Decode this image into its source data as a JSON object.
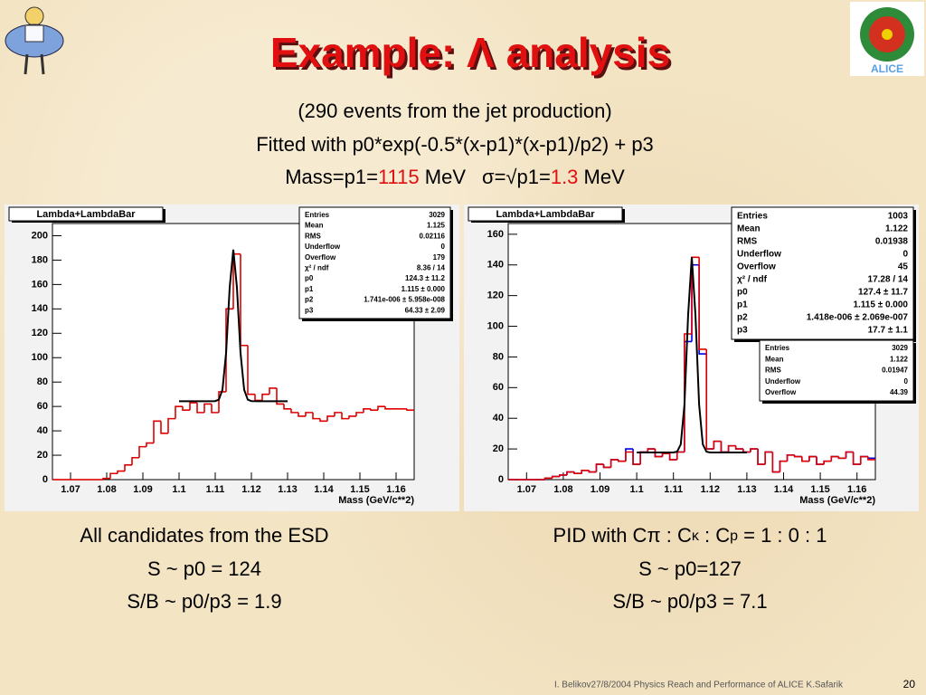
{
  "slide": {
    "title": "Example: Λ analysis",
    "line1": "(290 events from the jet production)",
    "line2": "Fitted with  p0*exp(-0.5*(x-p1)*(x-p1)/p2) + p3",
    "line3": {
      "a": "Mass=p1=",
      "mass": "1115",
      "unit": " MeV",
      "sigma": "σ",
      "b": "=√p1=",
      "width": "1.3",
      "unit2": " MeV"
    },
    "left_caption": [
      "All candidates from the ESD",
      "S ~ p0 = 124",
      "S/B ~ p0/p3 = 1.9"
    ],
    "right_caption": {
      "a": "PID with C",
      "pi": "π",
      "b": " : C",
      "k": "κ",
      "c": " : C",
      "p": "p",
      "d": " = 1 : 0 : 1",
      "line2": "S ~ p0=127",
      "line3": "S/B ~ p0/p3 = 7.1"
    },
    "footer": "I. Belikov27/8/2004 Physics Reach and Performance of ALICE  K.Safarik",
    "page": "20",
    "logo": "ALICE"
  },
  "chart_data": [
    {
      "type": "histogram",
      "title": "Lambda+LambdaBar",
      "x_label": "Mass (GeV/c**2)",
      "bins": [
        1.065,
        1.067,
        1.069,
        1.071,
        1.073,
        1.075,
        1.077,
        1.079,
        1.081,
        1.083,
        1.085,
        1.087,
        1.089,
        1.091,
        1.093,
        1.095,
        1.097,
        1.099,
        1.101,
        1.103,
        1.105,
        1.107,
        1.109,
        1.111,
        1.113,
        1.115,
        1.117,
        1.119,
        1.121,
        1.123,
        1.125,
        1.127,
        1.129,
        1.131,
        1.133,
        1.135,
        1.137,
        1.139,
        1.141,
        1.143,
        1.145,
        1.147,
        1.149,
        1.151,
        1.153,
        1.155,
        1.157,
        1.159,
        1.161,
        1.163,
        1.165
      ],
      "series": [
        {
          "color": "#e00000",
          "values": [
            0,
            0,
            0,
            0,
            0,
            0,
            0,
            1,
            5,
            7,
            12,
            18,
            27,
            30,
            48,
            38,
            50,
            60,
            57,
            63,
            55,
            62,
            55,
            72,
            140,
            185,
            110,
            70,
            65,
            70,
            75,
            62,
            58,
            55,
            52,
            55,
            50,
            48,
            52,
            55,
            50,
            52,
            55,
            58,
            57,
            60,
            58,
            58,
            58,
            57
          ]
        }
      ],
      "fit": {
        "color": "#000000",
        "x": [
          1.1,
          1.108,
          1.11,
          1.111,
          1.112,
          1.113,
          1.114,
          1.115,
          1.116,
          1.117,
          1.118,
          1.119,
          1.12,
          1.122,
          1.13
        ],
        "values": [
          64.3,
          64.3,
          64.4,
          65.6,
          73.7,
          103.7,
          157.6,
          188.6,
          157.6,
          103.7,
          73.7,
          65.6,
          64.4,
          64.3,
          64.3
        ]
      },
      "xlim": [
        1.065,
        1.165
      ],
      "xticks": [
        1.07,
        1.08,
        1.09,
        1.1,
        1.11,
        1.12,
        1.13,
        1.14,
        1.15,
        1.16
      ],
      "ylim": [
        0,
        210
      ],
      "yticks": [
        0,
        20,
        40,
        60,
        80,
        100,
        120,
        140,
        160,
        180,
        200
      ],
      "stats": [
        {
          "rows": [
            [
              "Entries",
              "3029"
            ],
            [
              "Mean",
              "1.125"
            ],
            [
              "RMS",
              "0.02116"
            ],
            [
              "Underflow",
              "0"
            ],
            [
              "Overflow",
              "179"
            ],
            [
              "χ² / ndf",
              "8.36 / 14"
            ],
            [
              "p0",
              "124.3 ± 11.2"
            ],
            [
              "p1",
              "1.115 ± 0.000"
            ],
            [
              "p2",
              "1.741e-006 ± 5.958e-008"
            ],
            [
              "p3",
              "64.33 ± 2.09"
            ]
          ]
        }
      ]
    },
    {
      "type": "histogram",
      "title": "Lambda+LambdaBar",
      "x_label": "Mass (GeV/c**2)",
      "bins": [
        1.065,
        1.067,
        1.069,
        1.071,
        1.073,
        1.075,
        1.077,
        1.079,
        1.081,
        1.083,
        1.085,
        1.087,
        1.089,
        1.091,
        1.093,
        1.095,
        1.097,
        1.099,
        1.101,
        1.103,
        1.105,
        1.107,
        1.109,
        1.111,
        1.113,
        1.115,
        1.117,
        1.119,
        1.121,
        1.123,
        1.125,
        1.127,
        1.129,
        1.131,
        1.133,
        1.135,
        1.137,
        1.139,
        1.141,
        1.143,
        1.145,
        1.147,
        1.149,
        1.151,
        1.153,
        1.155,
        1.157,
        1.159,
        1.161,
        1.163,
        1.165
      ],
      "series": [
        {
          "color": "#0000e0",
          "values": [
            0,
            0,
            0,
            0,
            0,
            1,
            2,
            3,
            5,
            4,
            6,
            5,
            10,
            8,
            13,
            12,
            20,
            10,
            18,
            20,
            15,
            17,
            13,
            18,
            90,
            140,
            82,
            20,
            25,
            18,
            22,
            20,
            18,
            20,
            10,
            18,
            5,
            12,
            16,
            15,
            12,
            15,
            10,
            12,
            15,
            14,
            18,
            10,
            15,
            14
          ]
        },
        {
          "color": "#e00000",
          "values": [
            0,
            0,
            0,
            0,
            0,
            1,
            2,
            3,
            5,
            4,
            6,
            5,
            10,
            8,
            13,
            12,
            18,
            10,
            18,
            20,
            15,
            17,
            13,
            18,
            95,
            145,
            85,
            20,
            25,
            18,
            22,
            20,
            18,
            20,
            10,
            18,
            5,
            12,
            16,
            15,
            12,
            15,
            10,
            12,
            15,
            14,
            18,
            10,
            15,
            13
          ]
        }
      ],
      "fit": {
        "color": "#000000",
        "x": [
          1.1,
          1.108,
          1.11,
          1.111,
          1.112,
          1.113,
          1.114,
          1.115,
          1.116,
          1.117,
          1.118,
          1.119,
          1.12,
          1.122,
          1.13
        ],
        "values": [
          17.7,
          17.7,
          17.7,
          18.2,
          23.0,
          48.8,
          107.2,
          145.1,
          107.2,
          48.8,
          23.0,
          18.2,
          17.7,
          17.7,
          17.7
        ]
      },
      "xlim": [
        1.065,
        1.165
      ],
      "xticks": [
        1.07,
        1.08,
        1.09,
        1.1,
        1.11,
        1.12,
        1.13,
        1.14,
        1.15,
        1.16
      ],
      "ylim": [
        0,
        167
      ],
      "yticks": [
        0,
        20,
        40,
        60,
        80,
        100,
        120,
        140,
        160
      ],
      "stats": [
        {
          "rows": [
            [
              "Entries",
              "1003"
            ],
            [
              "Mean",
              "1.122"
            ],
            [
              "RMS",
              "0.01938"
            ],
            [
              "Underflow",
              "0"
            ],
            [
              "Overflow",
              "45"
            ],
            [
              "χ² / ndf",
              "17.28 / 14"
            ],
            [
              "p0",
              "127.4 ± 11.7"
            ],
            [
              "p1",
              "1.115 ± 0.000"
            ],
            [
              "p2",
              "1.418e-006 ± 2.069e-007"
            ],
            [
              "p3",
              "17.7 ± 1.1"
            ]
          ]
        },
        {
          "rows": [
            [
              "Entries",
              "3029"
            ],
            [
              "Mean",
              "1.122"
            ],
            [
              "RMS",
              "0.01947"
            ],
            [
              "Underflow",
              "0"
            ],
            [
              "Overflow",
              "44.39"
            ]
          ]
        }
      ]
    }
  ]
}
